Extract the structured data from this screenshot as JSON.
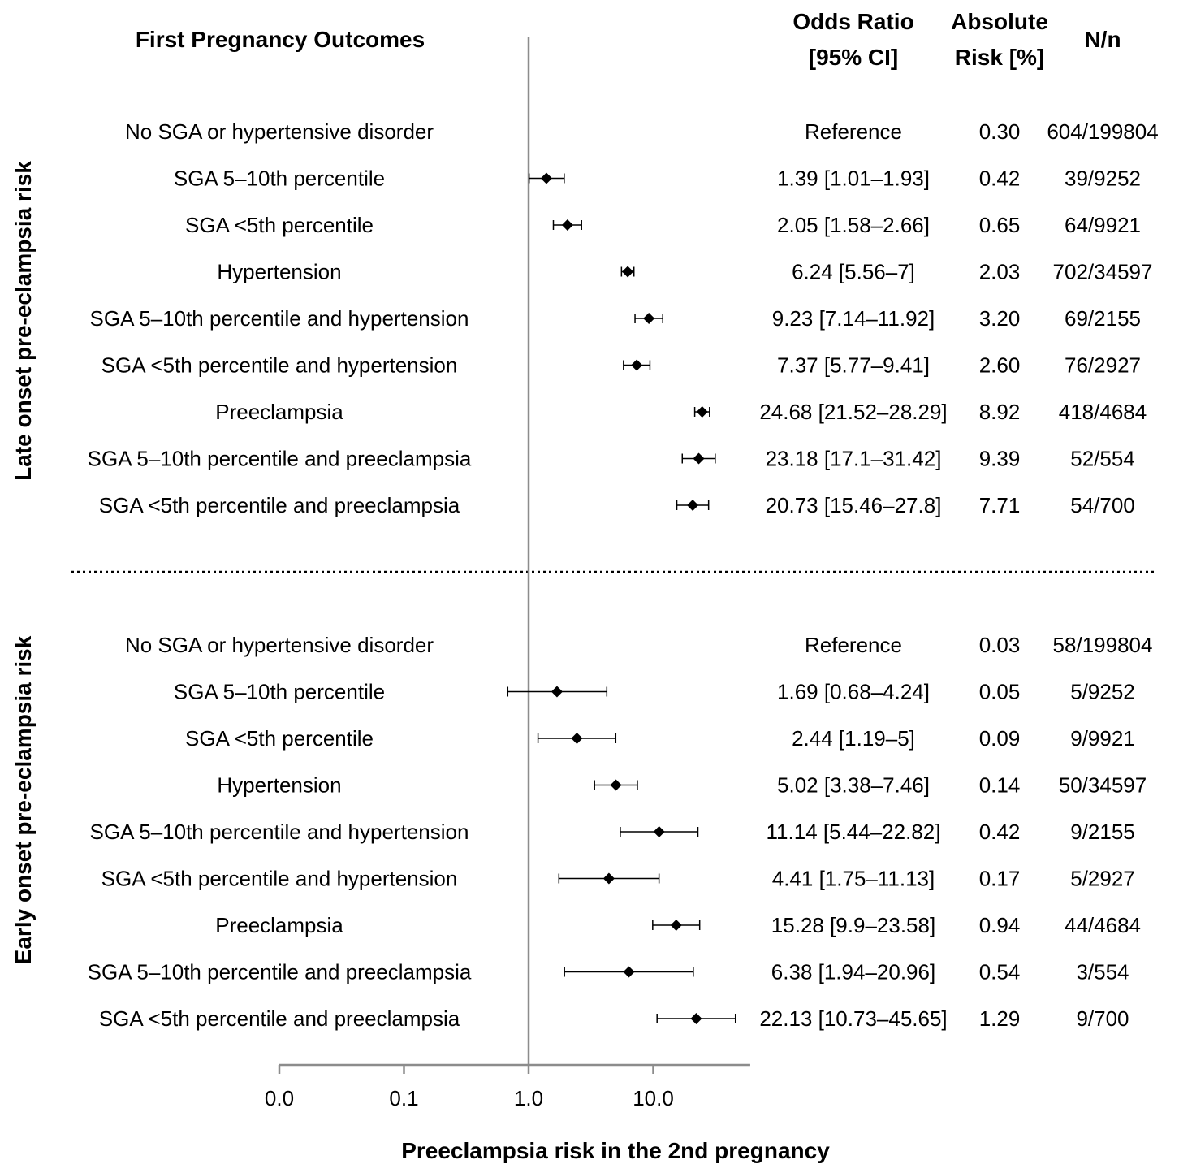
{
  "headers": {
    "outcomes": "First Pregnancy Outcomes",
    "odds_ratio_line1": "Odds Ratio",
    "odds_ratio_line2": "[95% CI]",
    "abs_risk_line1": "Absolute",
    "abs_risk_line2": "Risk [%]",
    "nn": "N/n"
  },
  "chart_data": {
    "type": "forest",
    "xlabel": "Preeclampsia risk in the 2nd pregnancy",
    "x_scale": "log10",
    "xlim": [
      0.01,
      60
    ],
    "ticks": [
      {
        "value": 0.01,
        "label": "0.0"
      },
      {
        "value": 0.1,
        "label": "0.1"
      },
      {
        "value": 1,
        "label": "1.0"
      },
      {
        "value": 10,
        "label": "10.0"
      }
    ],
    "reference_line": 1,
    "groups": [
      {
        "name": "Late onset pre-eclampsia risk",
        "rows": [
          {
            "label": "No SGA or hypertensive disorder",
            "or": null,
            "lo": null,
            "hi": null,
            "or_text": "Reference",
            "abs": "0.30",
            "nn": "604/199804"
          },
          {
            "label": "SGA 5–10th percentile",
            "or": 1.39,
            "lo": 1.01,
            "hi": 1.93,
            "or_text": "1.39 [1.01–1.93]",
            "abs": "0.42",
            "nn": "39/9252"
          },
          {
            "label": "SGA <5th percentile",
            "or": 2.05,
            "lo": 1.58,
            "hi": 2.66,
            "or_text": "2.05 [1.58–2.66]",
            "abs": "0.65",
            "nn": "64/9921"
          },
          {
            "label": "Hypertension",
            "or": 6.24,
            "lo": 5.56,
            "hi": 7,
            "or_text": "6.24 [5.56–7]",
            "abs": "2.03",
            "nn": "702/34597"
          },
          {
            "label": "SGA 5–10th percentile and hypertension",
            "or": 9.23,
            "lo": 7.14,
            "hi": 11.92,
            "or_text": "9.23 [7.14–11.92]",
            "abs": "3.20",
            "nn": "69/2155"
          },
          {
            "label": "SGA <5th percentile and hypertension",
            "or": 7.37,
            "lo": 5.77,
            "hi": 9.41,
            "or_text": "7.37 [5.77–9.41]",
            "abs": "2.60",
            "nn": "76/2927"
          },
          {
            "label": "Preeclampsia",
            "or": 24.68,
            "lo": 21.52,
            "hi": 28.29,
            "or_text": "24.68 [21.52–28.29]",
            "abs": "8.92",
            "nn": "418/4684"
          },
          {
            "label": "SGA 5–10th percentile and preeclampsia",
            "or": 23.18,
            "lo": 17.1,
            "hi": 31.42,
            "or_text": "23.18 [17.1–31.42]",
            "abs": "9.39",
            "nn": "52/554"
          },
          {
            "label": "SGA <5th percentile and preeclampsia",
            "or": 20.73,
            "lo": 15.46,
            "hi": 27.8,
            "or_text": "20.73 [15.46–27.8]",
            "abs": "7.71",
            "nn": "54/700"
          }
        ]
      },
      {
        "name": "Early onset pre-eclampsia risk",
        "rows": [
          {
            "label": "No SGA or hypertensive disorder",
            "or": null,
            "lo": null,
            "hi": null,
            "or_text": "Reference",
            "abs": "0.03",
            "nn": "58/199804"
          },
          {
            "label": "SGA 5–10th percentile",
            "or": 1.69,
            "lo": 0.68,
            "hi": 4.24,
            "or_text": "1.69 [0.68–4.24]",
            "abs": "0.05",
            "nn": "5/9252"
          },
          {
            "label": "SGA <5th percentile",
            "or": 2.44,
            "lo": 1.19,
            "hi": 5,
            "or_text": "2.44 [1.19–5]",
            "abs": "0.09",
            "nn": "9/9921"
          },
          {
            "label": "Hypertension",
            "or": 5.02,
            "lo": 3.38,
            "hi": 7.46,
            "or_text": "5.02 [3.38–7.46]",
            "abs": "0.14",
            "nn": "50/34597"
          },
          {
            "label": "SGA 5–10th percentile and hypertension",
            "or": 11.14,
            "lo": 5.44,
            "hi": 22.82,
            "or_text": "11.14 [5.44–22.82]",
            "abs": "0.42",
            "nn": "9/2155"
          },
          {
            "label": "SGA <5th percentile and hypertension",
            "or": 4.41,
            "lo": 1.75,
            "hi": 11.13,
            "or_text": "4.41 [1.75–11.13]",
            "abs": "0.17",
            "nn": "5/2927"
          },
          {
            "label": "Preeclampsia",
            "or": 15.28,
            "lo": 9.9,
            "hi": 23.58,
            "or_text": "15.28 [9.9–23.58]",
            "abs": "0.94",
            "nn": "44/4684"
          },
          {
            "label": "SGA 5–10th percentile and preeclampsia",
            "or": 6.38,
            "lo": 1.94,
            "hi": 20.96,
            "or_text": "6.38 [1.94–20.96]",
            "abs": "0.54",
            "nn": "3/554"
          },
          {
            "label": "SGA <5th percentile and preeclampsia",
            "or": 22.13,
            "lo": 10.73,
            "hi": 45.65,
            "or_text": "22.13 [10.73–45.65]",
            "abs": "1.29",
            "nn": "9/700"
          }
        ]
      }
    ]
  },
  "colors": {
    "text": "#000000",
    "axis": "#8c8c8c",
    "marker": "#000000"
  }
}
